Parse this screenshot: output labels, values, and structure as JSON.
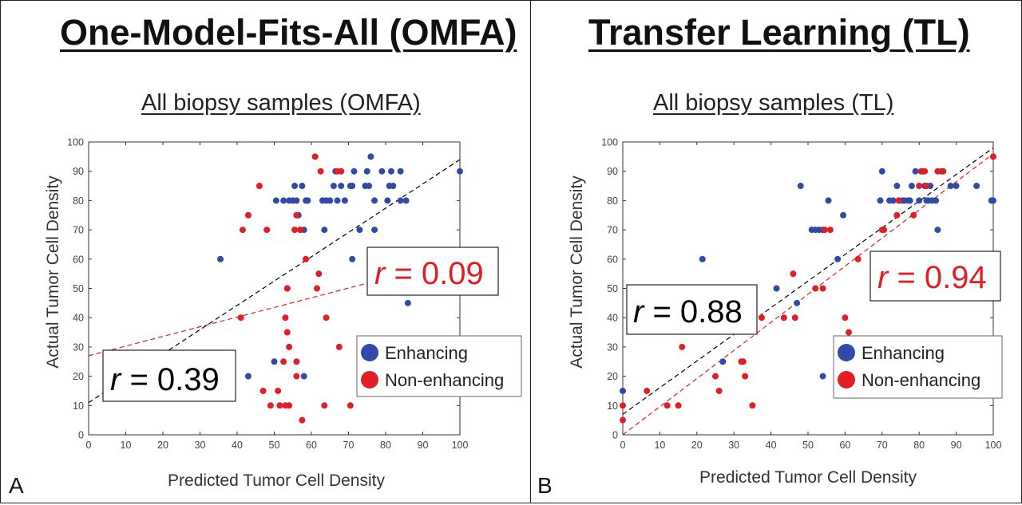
{
  "panels": [
    {
      "letter": "A",
      "title": "One-Model-Fits-All (OMFA)",
      "subtitle": "All biopsy samples (OMFA)"
    },
    {
      "letter": "B",
      "title": "Transfer Learning (TL)",
      "subtitle": "All biopsy samples (TL)"
    }
  ],
  "colors": {
    "enhancing": "#2f4aa8",
    "non_enhancing": "#e21d24",
    "black_line": "#000000",
    "red_line": "#e21d24"
  },
  "chart_data": [
    {
      "type": "scatter",
      "title": "All biopsy samples (OMFA)",
      "xlabel": "Predicted Tumor Cell Density",
      "ylabel": "Actual Tumor Cell Density",
      "xlim": [
        0,
        100
      ],
      "ylim": [
        0,
        100
      ],
      "xticks": [
        "0",
        "10",
        "20",
        "30",
        "40",
        "50",
        "60",
        "70",
        "80",
        "90",
        "100"
      ],
      "yticks": [
        "0",
        "10",
        "20",
        "30",
        "40",
        "50",
        "60",
        "70",
        "80",
        "90",
        "100"
      ],
      "grid": false,
      "legend": {
        "placement": "bottom-right",
        "entries": [
          "Enhancing",
          "Non-enhancing"
        ]
      },
      "annotations": [
        {
          "r_symbol": "r",
          "text": " = 0.39",
          "color": "#000000",
          "position": "bottom-left"
        },
        {
          "r_symbol": "r",
          "text": " = 0.09",
          "color": "#e21d24",
          "position": "middle-right"
        }
      ],
      "fit_lines": [
        {
          "series": "black",
          "x": [
            0,
            100
          ],
          "y": [
            11,
            94
          ]
        },
        {
          "series": "red",
          "x": [
            0,
            100
          ],
          "y": [
            27,
            60
          ]
        }
      ],
      "series": [
        {
          "name": "Enhancing",
          "points": [
            [
              35.5,
              60
            ],
            [
              43,
              20
            ],
            [
              50,
              25
            ],
            [
              50.5,
              80
            ],
            [
              52.5,
              80
            ],
            [
              53.5,
              50
            ],
            [
              54,
              80
            ],
            [
              55,
              80
            ],
            [
              55.5,
              85
            ],
            [
              56,
              80
            ],
            [
              56.5,
              75
            ],
            [
              57,
              70
            ],
            [
              57.5,
              85
            ],
            [
              58,
              70
            ],
            [
              58,
              20
            ],
            [
              58.5,
              80
            ],
            [
              59,
              80
            ],
            [
              63,
              80
            ],
            [
              63.5,
              70
            ],
            [
              64,
              80
            ],
            [
              65,
              80
            ],
            [
              66,
              85
            ],
            [
              66.5,
              90
            ],
            [
              67,
              80
            ],
            [
              68,
              85
            ],
            [
              68,
              90
            ],
            [
              69,
              80
            ],
            [
              70.5,
              85
            ],
            [
              71,
              60
            ],
            [
              71,
              85
            ],
            [
              71.5,
              90
            ],
            [
              73,
              70
            ],
            [
              74.5,
              85
            ],
            [
              75,
              90
            ],
            [
              75.5,
              85
            ],
            [
              76,
              95
            ],
            [
              77,
              70
            ],
            [
              77,
              80
            ],
            [
              79,
              90
            ],
            [
              80.5,
              80
            ],
            [
              81,
              85
            ],
            [
              81.5,
              90
            ],
            [
              82,
              85
            ],
            [
              84,
              90
            ],
            [
              84,
              80
            ],
            [
              85.5,
              80
            ],
            [
              86,
              45
            ],
            [
              100,
              90
            ]
          ]
        },
        {
          "name": "Non-enhancing",
          "points": [
            [
              41,
              40
            ],
            [
              41.5,
              70
            ],
            [
              43,
              75
            ],
            [
              46,
              85
            ],
            [
              47,
              15
            ],
            [
              48,
              70
            ],
            [
              49,
              10
            ],
            [
              51,
              15
            ],
            [
              51.5,
              10
            ],
            [
              52.5,
              25
            ],
            [
              53,
              40
            ],
            [
              53,
              10
            ],
            [
              53.5,
              50
            ],
            [
              53.5,
              35
            ],
            [
              54,
              10
            ],
            [
              54,
              30
            ],
            [
              55.5,
              70
            ],
            [
              56,
              75
            ],
            [
              56,
              20
            ],
            [
              56,
              25
            ],
            [
              57,
              70
            ],
            [
              57.5,
              5
            ],
            [
              58.5,
              60
            ],
            [
              61,
              95
            ],
            [
              61.5,
              50
            ],
            [
              62,
              55
            ],
            [
              62.5,
              90
            ],
            [
              63.5,
              10
            ],
            [
              64,
              40
            ],
            [
              67,
              90
            ],
            [
              67.5,
              30
            ],
            [
              68,
              90
            ],
            [
              70.5,
              10
            ]
          ]
        }
      ]
    },
    {
      "type": "scatter",
      "title": "All biopsy samples (TL)",
      "xlabel": "Predicted Tumor Cell Density",
      "ylabel": "Actual Tumor Cell Density",
      "xlim": [
        0,
        100
      ],
      "ylim": [
        0,
        100
      ],
      "xticks": [
        "0",
        "10",
        "20",
        "30",
        "40",
        "50",
        "60",
        "70",
        "80",
        "90",
        "100"
      ],
      "yticks": [
        "0",
        "10",
        "20",
        "30",
        "40",
        "50",
        "60",
        "70",
        "80",
        "90",
        "100"
      ],
      "grid": false,
      "legend": {
        "placement": "bottom-right",
        "entries": [
          "Enhancing",
          "Non-enhancing"
        ]
      },
      "annotations": [
        {
          "r_symbol": "r",
          "text": " = 0.88",
          "color": "#000000",
          "position": "middle-left"
        },
        {
          "r_symbol": "r",
          "text": " = 0.94",
          "color": "#e21d24",
          "position": "middle-right"
        }
      ],
      "fit_lines": [
        {
          "series": "black",
          "x": [
            0,
            100
          ],
          "y": [
            7,
            98
          ]
        },
        {
          "series": "red",
          "x": [
            0,
            100
          ],
          "y": [
            0,
            96
          ]
        }
      ],
      "series": [
        {
          "name": "Enhancing",
          "points": [
            [
              0,
              15
            ],
            [
              21.5,
              60
            ],
            [
              27,
              25
            ],
            [
              41.5,
              50
            ],
            [
              47,
              45
            ],
            [
              48,
              85
            ],
            [
              51,
              70
            ],
            [
              52,
              70
            ],
            [
              53,
              70
            ],
            [
              54,
              20
            ],
            [
              54,
              70
            ],
            [
              55.5,
              80
            ],
            [
              58,
              60
            ],
            [
              59.5,
              75
            ],
            [
              69.5,
              80
            ],
            [
              70,
              90
            ],
            [
              72,
              80
            ],
            [
              73,
              80
            ],
            [
              74,
              85
            ],
            [
              74.5,
              80
            ],
            [
              75.5,
              80
            ],
            [
              76,
              80
            ],
            [
              77,
              80
            ],
            [
              77.5,
              80
            ],
            [
              78,
              85
            ],
            [
              79,
              90
            ],
            [
              80,
              80
            ],
            [
              81,
              90
            ],
            [
              81.5,
              85
            ],
            [
              82,
              80
            ],
            [
              82.5,
              80
            ],
            [
              83,
              85
            ],
            [
              83.5,
              80
            ],
            [
              84.5,
              80
            ],
            [
              85,
              70
            ],
            [
              86,
              90
            ],
            [
              88.5,
              85
            ],
            [
              90,
              85
            ],
            [
              95.5,
              85
            ],
            [
              99.5,
              80
            ],
            [
              100,
              80
            ]
          ]
        },
        {
          "name": "Non-enhancing",
          "points": [
            [
              0,
              10
            ],
            [
              0,
              5
            ],
            [
              6.5,
              15
            ],
            [
              12,
              10
            ],
            [
              15,
              10
            ],
            [
              16,
              30
            ],
            [
              25,
              20
            ],
            [
              26,
              15
            ],
            [
              32,
              25
            ],
            [
              32.5,
              25
            ],
            [
              33,
              20
            ],
            [
              35,
              10
            ],
            [
              37.5,
              40
            ],
            [
              43.5,
              40
            ],
            [
              46,
              55
            ],
            [
              46.5,
              40
            ],
            [
              52,
              50
            ],
            [
              54,
              50
            ],
            [
              54.5,
              70
            ],
            [
              56,
              70
            ],
            [
              60,
              40
            ],
            [
              61,
              35
            ],
            [
              63.5,
              60
            ],
            [
              70,
              70
            ],
            [
              70.5,
              70
            ],
            [
              74,
              75
            ],
            [
              74.5,
              80
            ],
            [
              78.5,
              75
            ],
            [
              80,
              85
            ],
            [
              80.5,
              90
            ],
            [
              81.5,
              90
            ],
            [
              82,
              85
            ],
            [
              85,
              90
            ],
            [
              86.5,
              90
            ],
            [
              100,
              95
            ]
          ]
        }
      ]
    }
  ]
}
